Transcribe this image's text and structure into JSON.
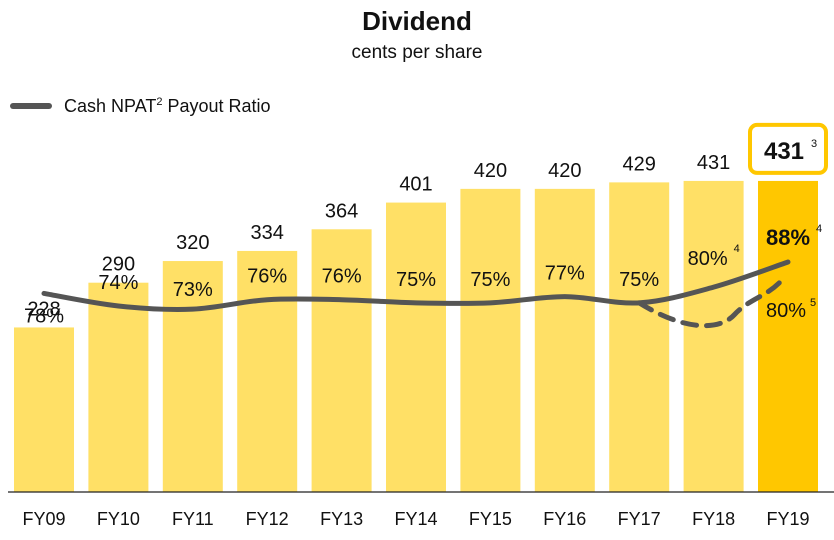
{
  "title": "Dividend",
  "subtitle": "cents per share",
  "legend": {
    "text": "Cash NPAT",
    "sup": "2",
    "text2": " Payout Ratio"
  },
  "colors": {
    "bar": "#FFE066",
    "bar_highlight": "#FFC700",
    "highlight_border": "#FFC700",
    "line": "#555555",
    "axis": "#222222",
    "text": "#111111"
  },
  "chart_data": {
    "type": "bar",
    "title": "Dividend",
    "subtitle": "cents per share",
    "categories": [
      "FY09",
      "FY10",
      "FY11",
      "FY12",
      "FY13",
      "FY14",
      "FY15",
      "FY16",
      "FY17",
      "FY18",
      "FY19"
    ],
    "series": [
      {
        "values": [
          228,
          290,
          320,
          334,
          364,
          401,
          420,
          420,
          429,
          431,
          431
        ]
      },
      {
        "name": "Cash NPAT2 Payout Ratio",
        "type": "line",
        "values": [
          78,
          74,
          73,
          76,
          76,
          75,
          75,
          77,
          75,
          80,
          88
        ],
        "unit": "%"
      },
      {
        "type": "line",
        "style": "dashed",
        "values_by_category": {
          "FY17": 75,
          "FY18": null,
          "FY19": 80
        },
        "unit": "%"
      }
    ],
    "bar_labels": [
      "228",
      "290",
      "320",
      "334",
      "364",
      "401",
      "420",
      "420",
      "429",
      "431",
      "431"
    ],
    "highlight_label_sup": "3",
    "ratio_labels": [
      "78%",
      "74%",
      "73%",
      "76%",
      "76%",
      "75%",
      "75%",
      "77%",
      "75%",
      "80%",
      "88%"
    ],
    "ratio_label_sups": [
      "",
      "",
      "",
      "",
      "",
      "",
      "",
      "",
      "",
      "4",
      "4"
    ],
    "dashed_label": "80%",
    "dashed_label_sup": "5",
    "highlight_category": "FY19",
    "ylim": [
      0,
      460
    ],
    "ratio_ylim": [
      60,
      95
    ],
    "grid": false,
    "legend_position": "top-left"
  }
}
